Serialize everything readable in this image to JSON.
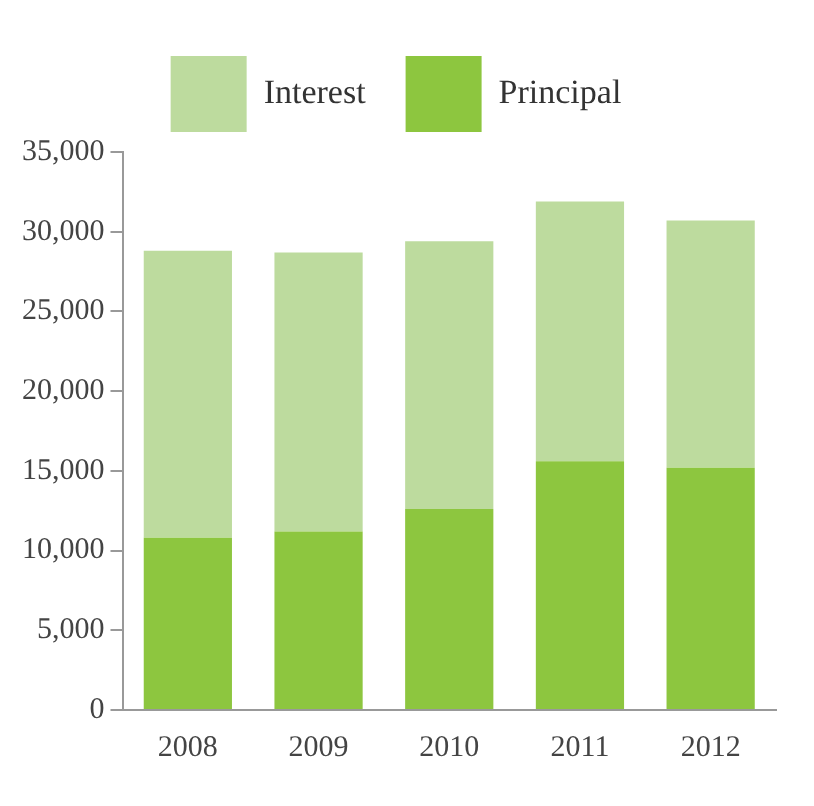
{
  "chart_data": {
    "type": "bar",
    "stacked": true,
    "categories": [
      "2008",
      "2009",
      "2010",
      "2011",
      "2012"
    ],
    "series": [
      {
        "name": "Principal",
        "color": "#8dc63f",
        "values": [
          10800,
          11200,
          12600,
          15600,
          15200
        ]
      },
      {
        "name": "Interest",
        "color": "#bddb9e",
        "values": [
          18000,
          17500,
          16800,
          16300,
          15500
        ]
      }
    ],
    "ylim": [
      0,
      35000
    ],
    "yticks": [
      {
        "value": 0,
        "label": "0"
      },
      {
        "value": 5000,
        "label": "5,000"
      },
      {
        "value": 10000,
        "label": "10,000"
      },
      {
        "value": 15000,
        "label": "15,000"
      },
      {
        "value": 20000,
        "label": "20,000"
      },
      {
        "value": 25000,
        "label": "25,000"
      },
      {
        "value": 30000,
        "label": "30,000"
      },
      {
        "value": 35000,
        "label": "35,000"
      }
    ],
    "grid": false,
    "legend": "top"
  }
}
